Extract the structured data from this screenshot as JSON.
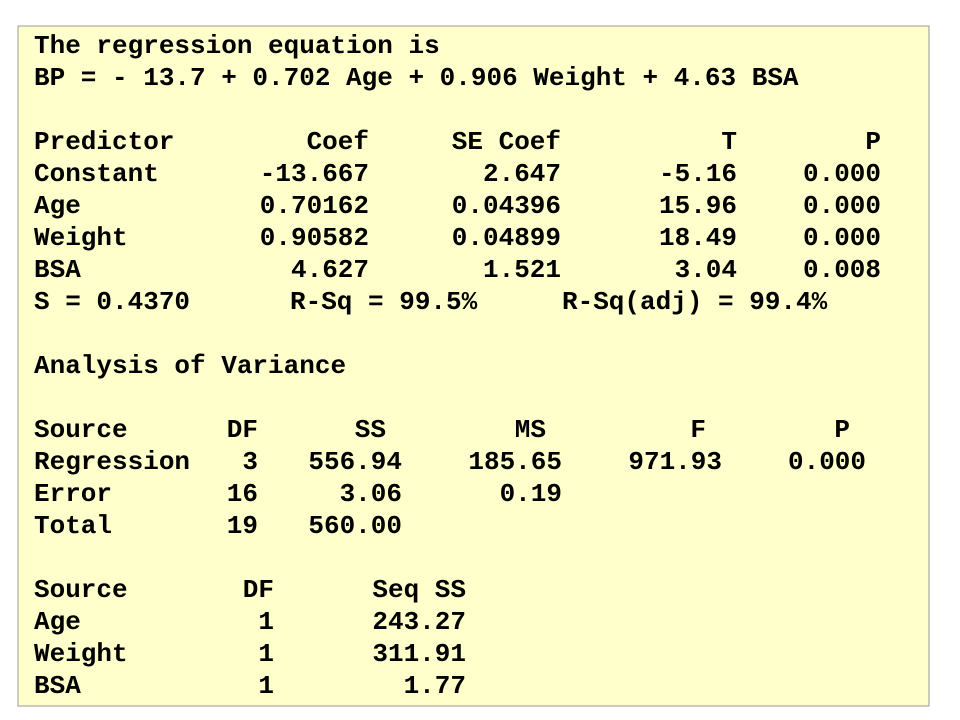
{
  "header": {
    "title": "The regression equation is",
    "equation": "BP = - 13.7 + 0.702 Age + 0.906 Weight + 4.63 BSA"
  },
  "coefficients": {
    "columns": [
      "Predictor",
      "Coef",
      "SE Coef",
      "T",
      "P"
    ],
    "rows": [
      [
        "Constant",
        "-13.667",
        "2.647",
        "-5.16",
        "0.000"
      ],
      [
        "Age",
        "0.70162",
        "0.04396",
        "15.96",
        "0.000"
      ],
      [
        "Weight",
        "0.90582",
        "0.04899",
        "18.49",
        "0.000"
      ],
      [
        "BSA",
        "4.627",
        "1.521",
        "3.04",
        "0.008"
      ]
    ]
  },
  "fit": {
    "s": "S = 0.4370",
    "r_sq": "R-Sq = 99.5%",
    "r_sq_adj": "R-Sq(adj) = 99.4%"
  },
  "anova": {
    "title": "Analysis of Variance",
    "columns": [
      "Source",
      "DF",
      "SS",
      "MS",
      "F",
      "P"
    ],
    "rows": [
      [
        "Regression",
        "3",
        "556.94",
        "185.65",
        "971.93",
        "0.000"
      ],
      [
        "Error",
        "16",
        "3.06",
        "0.19"
      ],
      [
        "Total",
        "19",
        "560.00"
      ]
    ]
  },
  "seq_ss": {
    "columns": [
      "Source",
      "DF",
      "Seq SS"
    ],
    "rows": [
      [
        "Age",
        "1",
        "243.27"
      ],
      [
        "Weight",
        "1",
        "311.91"
      ],
      [
        "BSA",
        "1",
        "1.77"
      ]
    ]
  }
}
